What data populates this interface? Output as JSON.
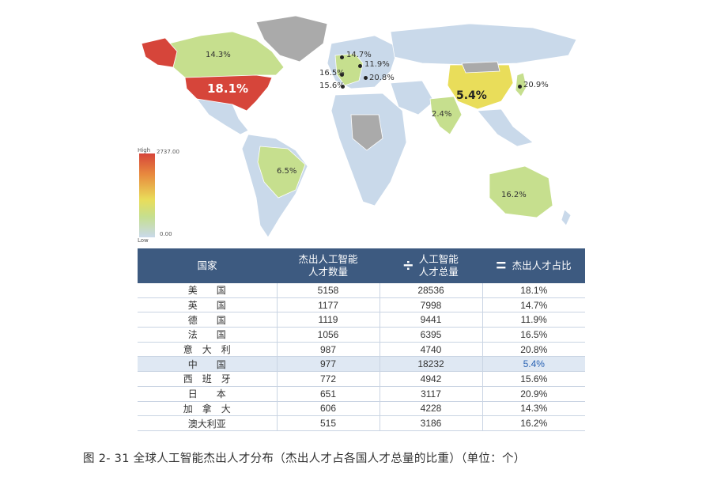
{
  "map": {
    "labels": {
      "usa": "18.1%",
      "canada": "14.3%",
      "uk": "14.7%",
      "germany": "11.9%",
      "france": "16.5%",
      "italy": "20.8%",
      "spain": "15.6%",
      "china": "5.4%",
      "japan": "20.9%",
      "india": "2.4%",
      "brazil": "6.5%",
      "australia": "16.2%"
    },
    "legend": {
      "high_label": "High",
      "high_value": "2737.00",
      "low_label": "Low",
      "low_value": "0.00"
    },
    "colors": {
      "high": "#d6453a",
      "mid": "#e9dd5a",
      "light": "#c6df8e",
      "low": "#c9d9ea",
      "nodata": "#aaaaaa"
    }
  },
  "table": {
    "headers": {
      "country": "国家",
      "top_talent": [
        "杰出人工智能",
        "人才数量"
      ],
      "divide_op": "÷",
      "total_talent": [
        "人工智能",
        "人才总量"
      ],
      "equals_op": "=",
      "share": "杰出人才占比"
    },
    "rows": [
      {
        "country": "美　　国",
        "top": "5158",
        "total": "28536",
        "share": "18.1%"
      },
      {
        "country": "英　　国",
        "top": "1177",
        "total": "7998",
        "share": "14.7%"
      },
      {
        "country": "德　　国",
        "top": "1119",
        "total": "9441",
        "share": "11.9%"
      },
      {
        "country": "法　　国",
        "top": "1056",
        "total": "6395",
        "share": "16.5%"
      },
      {
        "country": "意　大　利",
        "top": "987",
        "total": "4740",
        "share": "20.8%"
      },
      {
        "country": "中　　国",
        "top": "977",
        "total": "18232",
        "share": "5.4%",
        "highlight": true
      },
      {
        "country": "西　班　牙",
        "top": "772",
        "total": "4942",
        "share": "15.6%"
      },
      {
        "country": "日　　本",
        "top": "651",
        "total": "3117",
        "share": "20.9%"
      },
      {
        "country": "加　拿　大",
        "top": "606",
        "total": "4228",
        "share": "14.3%"
      },
      {
        "country": "澳大利亚",
        "top": "515",
        "total": "3186",
        "share": "16.2%"
      }
    ]
  },
  "caption": "图 2- 31  全球人工智能杰出人才分布（杰出人才占各国人才总量的比重）（单位：个）"
}
